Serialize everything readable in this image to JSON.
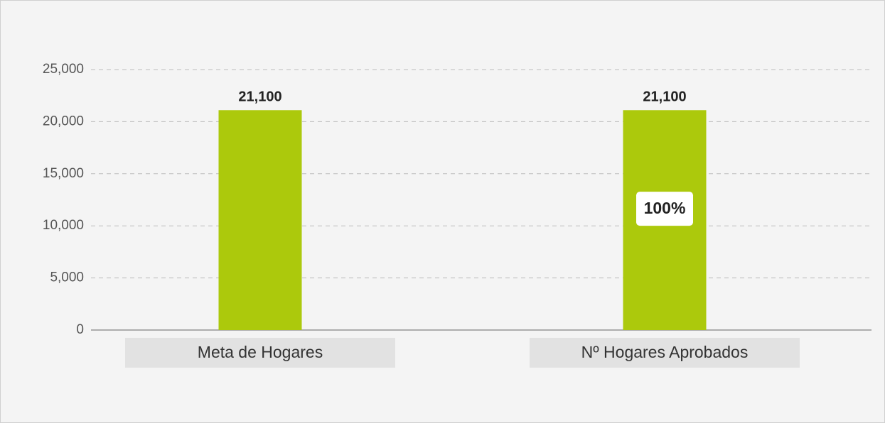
{
  "chart_data": {
    "type": "bar",
    "categories": [
      "Meta de Hogares",
      "Nº Hogares Aprobados"
    ],
    "values": [
      21100,
      21100
    ],
    "value_labels": [
      "21,100",
      "21,100"
    ],
    "annotation": "100%",
    "color": "#acc90c",
    "ylim": [
      0,
      25000
    ],
    "yticks": [
      0,
      {
        "value": 5000,
        "label": "5,000"
      },
      {
        "value": 10000,
        "label": "10,000"
      },
      {
        "value": 15000,
        "label": "15,000"
      },
      {
        "value": 20000,
        "label": "20,000"
      },
      {
        "value": 25000,
        "label": "25,000"
      }
    ],
    "grid": true
  }
}
